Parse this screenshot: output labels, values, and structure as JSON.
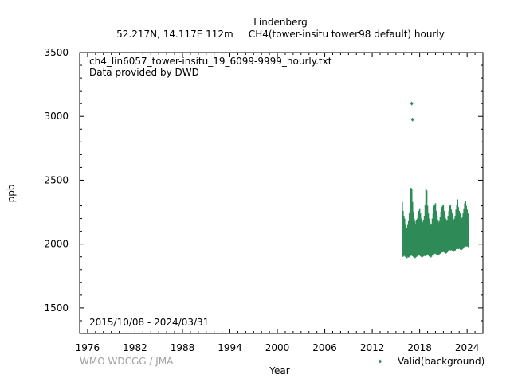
{
  "header": {
    "station": "Lindenberg",
    "subtitle": "52.217N, 14.117E 112m     CH4(tower-insitu tower98 default) hourly"
  },
  "chart_data": {
    "type": "scatter",
    "xlabel": "Year",
    "ylabel": "ppb",
    "xlim": [
      1975,
      2026
    ],
    "ylim": [
      1300,
      3500
    ],
    "x_ticks": [
      1976,
      1982,
      1988,
      1994,
      2000,
      2006,
      2012,
      2018,
      2024
    ],
    "y_ticks": [
      1500,
      2000,
      2500,
      3000,
      3500
    ],
    "grid": false,
    "legend_position": "bottom-right",
    "annotations": {
      "file": "ch4_lin6057_tower-insitu_19_6099-9999_hourly.txt",
      "provider": "Data provided by DWD",
      "period": "2015/10/08 - 2024/03/31"
    },
    "series": [
      {
        "name": "Valid(background)",
        "color": "#2e8b57",
        "x": [
          2015.8,
          2015.9,
          2016.0,
          2016.1,
          2016.2,
          2016.3,
          2016.4,
          2016.5,
          2016.6,
          2016.7,
          2016.8,
          2016.9,
          2017.0,
          2017.1,
          2017.2,
          2017.3,
          2017.4,
          2017.5,
          2017.6,
          2017.7,
          2017.8,
          2017.9,
          2018.0,
          2018.1,
          2018.2,
          2018.3,
          2018.4,
          2018.5,
          2018.6,
          2018.7,
          2018.8,
          2018.9,
          2019.0,
          2019.1,
          2019.2,
          2019.3,
          2019.4,
          2019.5,
          2019.6,
          2019.7,
          2019.8,
          2019.9,
          2020.0,
          2020.1,
          2020.2,
          2020.3,
          2020.4,
          2020.5,
          2020.6,
          2020.7,
          2020.8,
          2020.9,
          2021.0,
          2021.1,
          2021.2,
          2021.3,
          2021.4,
          2021.5,
          2021.6,
          2021.7,
          2021.8,
          2021.9,
          2022.0,
          2022.1,
          2022.2,
          2022.3,
          2022.4,
          2022.5,
          2022.6,
          2022.7,
          2022.8,
          2022.9,
          2023.0,
          2023.1,
          2023.2,
          2023.3,
          2023.4,
          2023.5,
          2023.6,
          2023.7,
          2023.8,
          2023.9,
          2024.0,
          2024.1,
          2024.2
        ],
        "y_min": [
          1910,
          1900,
          1905,
          1910,
          1900,
          1895,
          1890,
          1900,
          1895,
          1900,
          1905,
          1910,
          1910,
          1905,
          1900,
          1895,
          1890,
          1895,
          1900,
          1905,
          1910,
          1915,
          1910,
          1905,
          1900,
          1895,
          1900,
          1905,
          1910,
          1905,
          1910,
          1915,
          1920,
          1915,
          1905,
          1900,
          1895,
          1900,
          1910,
          1915,
          1920,
          1925,
          1925,
          1920,
          1915,
          1910,
          1915,
          1920,
          1925,
          1930,
          1935,
          1935,
          1940,
          1935,
          1930,
          1925,
          1930,
          1935,
          1945,
          1950,
          1955,
          1950,
          1955,
          1950,
          1945,
          1940,
          1945,
          1950,
          1960,
          1965,
          1965,
          1960,
          1965,
          1960,
          1955,
          1955,
          1960,
          1965,
          1975,
          1980,
          1985,
          1980,
          1985,
          1980,
          1975
        ],
        "y_max": [
          2330,
          2260,
          2220,
          2200,
          2150,
          2120,
          2130,
          2150,
          2180,
          2240,
          2300,
          2440,
          2430,
          2330,
          2250,
          2200,
          2180,
          2160,
          2190,
          2200,
          2230,
          2260,
          2280,
          2240,
          2200,
          2180,
          2170,
          2190,
          2220,
          2310,
          2430,
          2420,
          2300,
          2240,
          2200,
          2170,
          2150,
          2160,
          2200,
          2240,
          2300,
          2310,
          2320,
          2260,
          2220,
          2190,
          2170,
          2180,
          2210,
          2250,
          2290,
          2300,
          2310,
          2260,
          2230,
          2200,
          2180,
          2190,
          2220,
          2260,
          2300,
          2310,
          2270,
          2240,
          2210,
          2190,
          2200,
          2220,
          2270,
          2310,
          2350,
          2290,
          2260,
          2240,
          2210,
          2200,
          2210,
          2240,
          2280,
          2320,
          2340,
          2300,
          2270,
          2240,
          2200
        ],
        "outliers": [
          {
            "x": 2017.0,
            "y": 3100
          },
          {
            "x": 2017.1,
            "y": 2975
          }
        ]
      }
    ]
  },
  "footer": {
    "credit": "WMO WDCGG / JMA"
  }
}
